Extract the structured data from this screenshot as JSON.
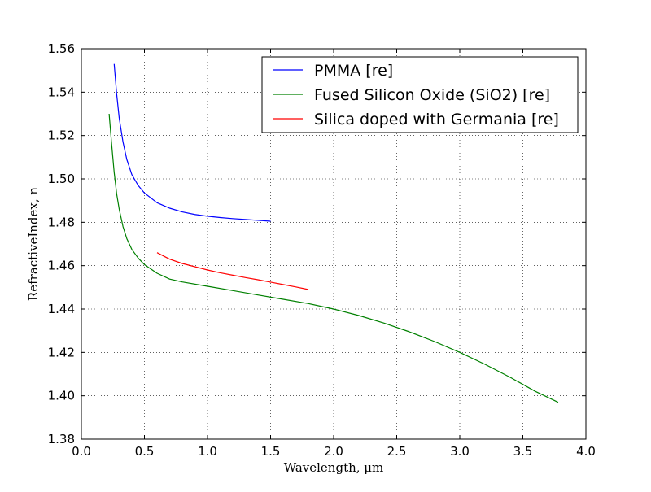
{
  "chart_data": {
    "type": "line",
    "xlabel": "Wavelength, μm",
    "ylabel": "RefractiveIndex, n",
    "xlim": [
      0.0,
      4.0
    ],
    "ylim": [
      1.38,
      1.56
    ],
    "x_ticks": [
      0.0,
      0.5,
      1.0,
      1.5,
      2.0,
      2.5,
      3.0,
      3.5,
      4.0
    ],
    "x_tick_labels": [
      "0.0",
      "0.5",
      "1.0",
      "1.5",
      "2.0",
      "2.5",
      "3.0",
      "3.5",
      "4.0"
    ],
    "y_ticks": [
      1.38,
      1.4,
      1.42,
      1.44,
      1.46,
      1.48,
      1.5,
      1.52,
      1.54,
      1.56
    ],
    "y_tick_labels": [
      "1.38",
      "1.40",
      "1.42",
      "1.44",
      "1.46",
      "1.48",
      "1.50",
      "1.52",
      "1.54",
      "1.56"
    ],
    "grid": true,
    "legend_position": "top-right",
    "series": [
      {
        "name": "PMMA [re]",
        "color": "#0000ff",
        "x": [
          0.26,
          0.28,
          0.3,
          0.33,
          0.36,
          0.4,
          0.45,
          0.5,
          0.6,
          0.7,
          0.8,
          0.9,
          1.0,
          1.1,
          1.2,
          1.3,
          1.4,
          1.5
        ],
        "y": [
          1.553,
          1.539,
          1.528,
          1.517,
          1.509,
          1.502,
          1.497,
          1.4935,
          1.489,
          1.4865,
          1.4848,
          1.4836,
          1.4828,
          1.4822,
          1.4817,
          1.4813,
          1.4809,
          1.4805
        ]
      },
      {
        "name": "Fused Silicon Oxide (SiO2) [re]",
        "color": "#008000",
        "x": [
          0.22,
          0.24,
          0.26,
          0.28,
          0.3,
          0.33,
          0.36,
          0.4,
          0.45,
          0.5,
          0.6,
          0.7,
          0.8,
          1.0,
          1.2,
          1.4,
          1.6,
          1.8,
          2.0,
          2.2,
          2.4,
          2.6,
          2.8,
          3.0,
          3.2,
          3.4,
          3.6,
          3.78
        ],
        "y": [
          1.53,
          1.516,
          1.503,
          1.493,
          1.486,
          1.478,
          1.4725,
          1.4675,
          1.4635,
          1.4605,
          1.4565,
          1.4538,
          1.4525,
          1.4505,
          1.4485,
          1.4465,
          1.4445,
          1.4425,
          1.44,
          1.437,
          1.4335,
          1.4295,
          1.425,
          1.42,
          1.4145,
          1.4085,
          1.402,
          1.397
        ]
      },
      {
        "name": "Silica doped with Germania [re]",
        "color": "#ff0000",
        "x": [
          0.6,
          0.7,
          0.8,
          0.9,
          1.0,
          1.1,
          1.2,
          1.3,
          1.4,
          1.5,
          1.6,
          1.7,
          1.8
        ],
        "y": [
          1.466,
          1.463,
          1.461,
          1.4595,
          1.458,
          1.4567,
          1.4556,
          1.4545,
          1.4535,
          1.4524,
          1.4513,
          1.4502,
          1.449
        ]
      }
    ]
  }
}
